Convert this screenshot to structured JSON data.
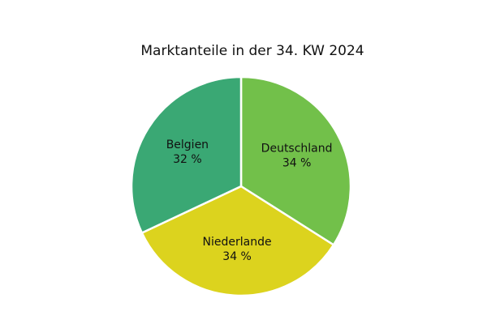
{
  "chart_data": {
    "type": "pie",
    "title": "Marktanteile in der 34. KW 2024",
    "categories": [
      "Deutschland",
      "Niederlande",
      "Belgien"
    ],
    "values": [
      34,
      34,
      32
    ],
    "value_labels": [
      "34 %",
      "34 %",
      "32 %"
    ],
    "colors": [
      "#72c04a",
      "#dcd31e",
      "#3aa874"
    ]
  }
}
